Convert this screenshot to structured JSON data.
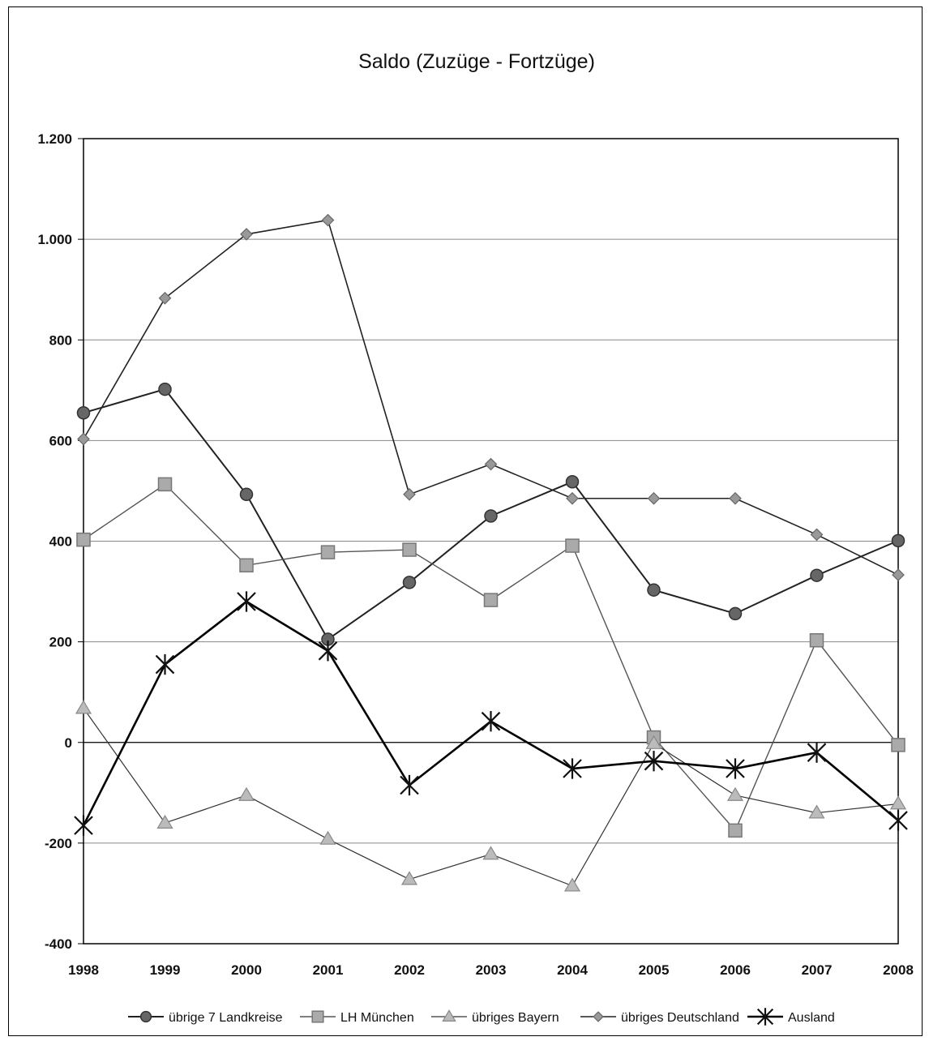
{
  "chart_data": {
    "type": "line",
    "title": "Saldo (Zuzüge - Fortzüge)",
    "xlabel": "",
    "ylabel": "",
    "x": [
      "1998",
      "1999",
      "2000",
      "2001",
      "2002",
      "2003",
      "2004",
      "2005",
      "2006",
      "2007",
      "2008"
    ],
    "ylim": [
      -400,
      1200
    ],
    "yticks": [
      -400,
      -200,
      0,
      200,
      400,
      600,
      800,
      1000,
      1200
    ],
    "ytick_labels": [
      "-400",
      "-200",
      "0",
      "200",
      "400",
      "600",
      "800",
      "1.000",
      "1.200"
    ],
    "grid": true,
    "legend_position": "bottom",
    "series": [
      {
        "name": "übrige 7 Landkreise",
        "marker": "circle",
        "color": "#555555",
        "values": [
          655,
          702,
          493,
          205,
          318,
          450,
          518,
          303,
          256,
          332,
          401
        ]
      },
      {
        "name": "LH München",
        "marker": "square",
        "color": "#999999",
        "values": [
          403,
          513,
          352,
          378,
          383,
          283,
          391,
          10,
          -175,
          203,
          -5
        ]
      },
      {
        "name": "übriges Bayern",
        "marker": "triangle",
        "color": "#a8a8a8",
        "values": [
          68,
          -160,
          -105,
          -192,
          -272,
          -222,
          -285,
          -2,
          -105,
          -140,
          -122
        ]
      },
      {
        "name": "übriges Deutschland",
        "marker": "diamond",
        "color": "#8a8a8a",
        "values": [
          603,
          883,
          1010,
          1038,
          493,
          553,
          485,
          485,
          485,
          413,
          333
        ]
      },
      {
        "name": "Ausland",
        "marker": "star",
        "color": "#222222",
        "values": [
          -165,
          155,
          280,
          182,
          -85,
          42,
          -52,
          -37,
          -52,
          -20,
          -155
        ]
      }
    ]
  }
}
